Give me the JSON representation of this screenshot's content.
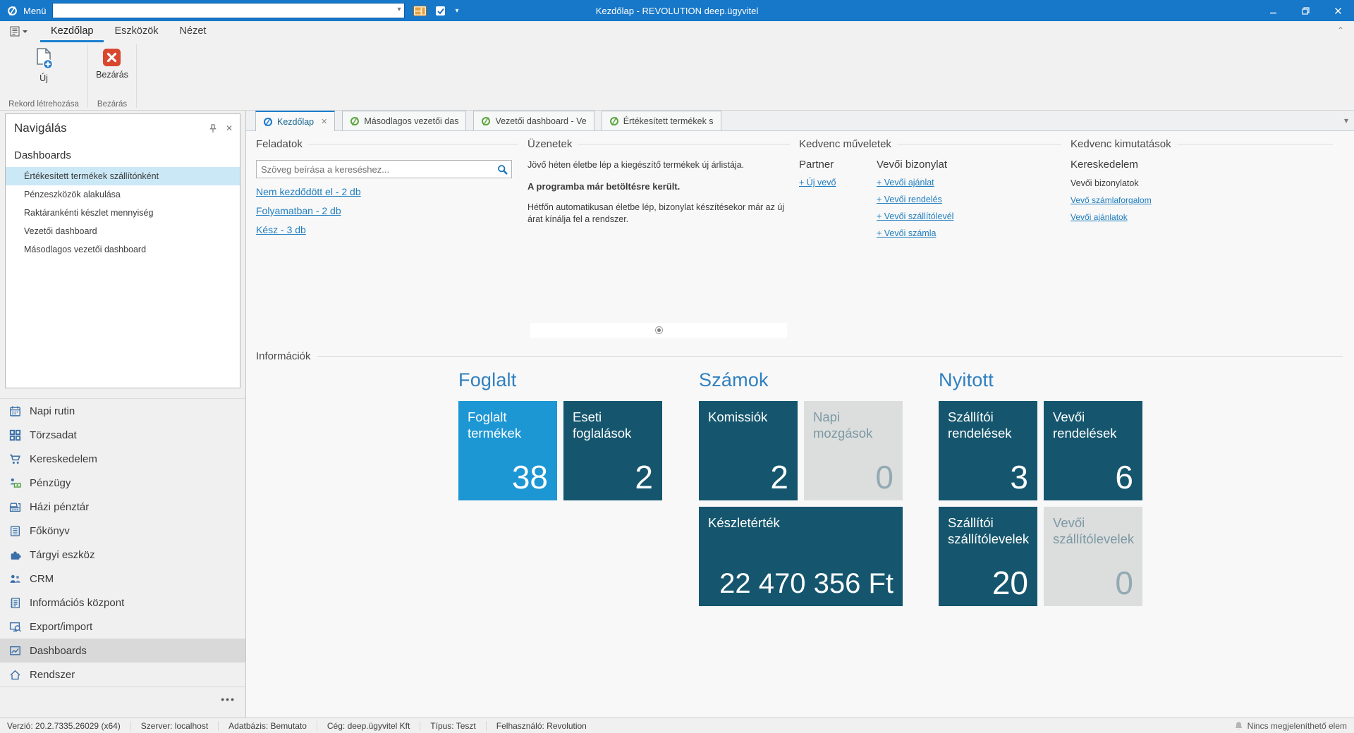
{
  "window": {
    "title": "Kezdőlap - REVOLUTION deep.ügyvitel",
    "menu_label": "Menü"
  },
  "colors": {
    "titlebar": "#1777c8",
    "accent": "#1a7fd0",
    "link": "#1f7dbe",
    "tile_bright": "#1d96d4",
    "tile_dark": "#15566e",
    "tile_gray": "#dcdddd"
  },
  "ribbon": {
    "tabs": [
      {
        "label": "Kezdőlap",
        "active": true
      },
      {
        "label": "Eszközök",
        "active": false
      },
      {
        "label": "Nézet",
        "active": false
      }
    ],
    "new_label": "Új",
    "close_label": "Bezárás",
    "groups": [
      "Rekord létrehozása",
      "Bezárás"
    ]
  },
  "navigation": {
    "title": "Navigálás",
    "section": "Dashboards",
    "items": [
      {
        "label": "Értékesített termékek szállítónként",
        "selected": true
      },
      {
        "label": "Pénzeszközök alakulása",
        "selected": false
      },
      {
        "label": "Raktárankénti készlet mennyiség",
        "selected": false
      },
      {
        "label": "Vezetői dashboard",
        "selected": false
      },
      {
        "label": "Másodlagos vezetői dashboard",
        "selected": false
      }
    ],
    "modules": [
      {
        "label": "Napi rutin",
        "icon": "calendar-icon",
        "selected": false
      },
      {
        "label": "Törzsadat",
        "icon": "grid-icon",
        "selected": false
      },
      {
        "label": "Kereskedelem",
        "icon": "cart-icon",
        "selected": false
      },
      {
        "label": "Pénzügy",
        "icon": "finance-icon",
        "selected": false
      },
      {
        "label": "Házi pénztár",
        "icon": "cash-register-icon",
        "selected": false
      },
      {
        "label": "Főkönyv",
        "icon": "ledger-icon",
        "selected": false
      },
      {
        "label": "Tárgyi eszköz",
        "icon": "puzzle-icon",
        "selected": false
      },
      {
        "label": "CRM",
        "icon": "people-icon",
        "selected": false
      },
      {
        "label": "Információs központ",
        "icon": "notebook-icon",
        "selected": false
      },
      {
        "label": "Export/import",
        "icon": "export-icon",
        "selected": false
      },
      {
        "label": "Dashboards",
        "icon": "dashboard-icon",
        "selected": true
      },
      {
        "label": "Rendszer",
        "icon": "home-icon",
        "selected": false
      }
    ],
    "more_label": "•••"
  },
  "document_tabs": [
    {
      "label": "Kezdőlap",
      "active": true,
      "closable": true
    },
    {
      "label": "Másodlagos vezetői das",
      "active": false,
      "closable": false
    },
    {
      "label": "Vezetői dashboard - Ve",
      "active": false,
      "closable": false
    },
    {
      "label": "Értékesített termékek s",
      "active": false,
      "closable": false
    }
  ],
  "sections": {
    "tasks": {
      "title": "Feladatok",
      "search_placeholder": "Szöveg beírása a kereséshez...",
      "links": [
        "Nem kezdődött el - 2 db",
        "Folyamatban - 2 db",
        "Kész - 3 db"
      ]
    },
    "messages": {
      "title": "Üzenetek",
      "lines": [
        {
          "text": "Jövő héten életbe lép a kiegészítő termékek új árlistája.",
          "bold": false
        },
        {
          "text": "A programba már betöltésre került.",
          "bold": true
        },
        {
          "text": "Hétfőn automatikusan életbe lép, bizonylat készítésekor már az új árat kínálja fel a rendszer.",
          "bold": false
        }
      ]
    },
    "favorite_actions": {
      "title": "Kedvenc műveletek",
      "columns": [
        {
          "header": "Partner",
          "links": [
            "+ Új vevő"
          ]
        },
        {
          "header": "Vevői bizonylat",
          "links": [
            "+ Vevői ajánlat",
            "+ Vevői rendelés",
            "+ Vevői szállítólevél",
            "+ Vevői számla"
          ]
        }
      ]
    },
    "favorite_reports": {
      "title": "Kedvenc kimutatások",
      "group": "Kereskedelem",
      "subgroup": "Vevői bizonylatok",
      "links": [
        "Vevő számlaforgalom",
        "Vevői ajánlatok"
      ]
    },
    "information": {
      "title": "Információk"
    }
  },
  "tiles": {
    "groups": [
      {
        "title": "Foglalt",
        "tiles": [
          {
            "label": "Foglalt termékek",
            "value": "38",
            "style": "bright",
            "wide": false
          },
          {
            "label": "Eseti foglalások",
            "value": "2",
            "style": "dark",
            "wide": false
          }
        ]
      },
      {
        "title": "Számok",
        "tiles": [
          {
            "label": "Komissiók",
            "value": "2",
            "style": "dark",
            "wide": false
          },
          {
            "label": "Napi mozgások",
            "value": "0",
            "style": "gray",
            "wide": false
          },
          {
            "label": "Készletérték",
            "value": "22 470 356 Ft",
            "style": "dark",
            "wide": true
          }
        ]
      },
      {
        "title": "Nyitott",
        "tiles": [
          {
            "label": "Szállítói rendelések",
            "value": "3",
            "style": "dark",
            "wide": false
          },
          {
            "label": "Vevői rendelések",
            "value": "6",
            "style": "dark",
            "wide": false
          },
          {
            "label": "Szállítói szállítólevelek",
            "value": "20",
            "style": "dark",
            "wide": false
          },
          {
            "label": "Vevői szállítólevelek",
            "value": "0",
            "style": "gray",
            "wide": false
          }
        ]
      }
    ]
  },
  "status_bar": {
    "items": [
      "Verzió: 20.2.7335.26029 (x64)",
      "Szerver: localhost",
      "Adatbázis: Bemutato",
      "Cég: deep.ügyvitel Kft",
      "Típus: Teszt",
      "Felhasználó: Revolution"
    ],
    "right": "Nincs megjeleníthető elem"
  }
}
